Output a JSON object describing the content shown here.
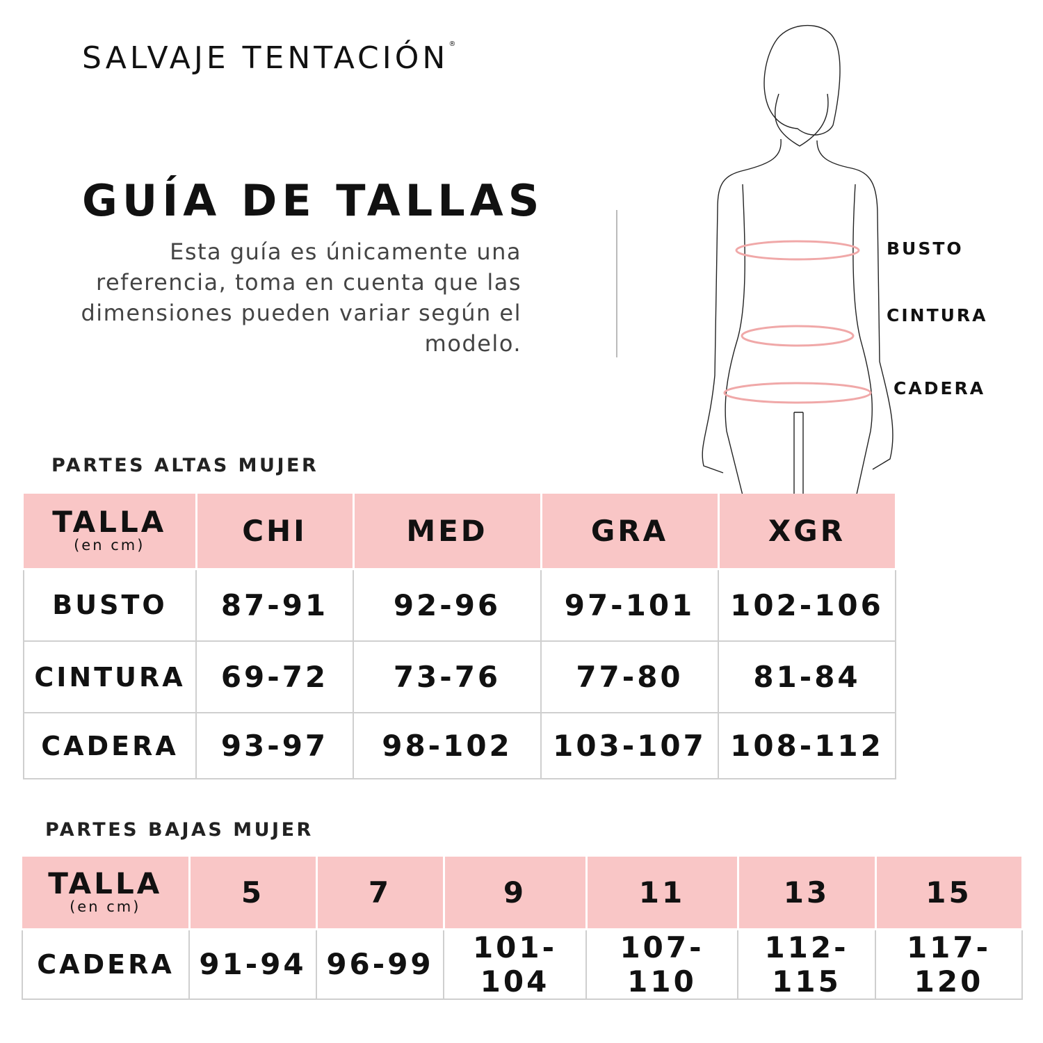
{
  "brand": {
    "name": "SALVAJE TENTACIÓN",
    "mark": "®"
  },
  "title": "GUÍA DE TALLAS",
  "description": "Esta guía es únicamente una referencia, toma en cuenta que las dimensiones pueden variar según el modelo.",
  "figure": {
    "labels": [
      "BUSTO",
      "CINTURA",
      "CADERA"
    ],
    "measure_color": "#f0a8a8"
  },
  "colors": {
    "header_bg": "#f9c6c6",
    "text": "#111111"
  },
  "top_table": {
    "section_title": "PARTES ALTAS MUJER",
    "header_label": "TALLA",
    "header_sublabel": "(en cm)",
    "columns": [
      "CHI",
      "MED",
      "GRA",
      "XGR"
    ],
    "rows": [
      {
        "label": "BUSTO",
        "values": [
          "87-91",
          "92-96",
          "97-101",
          "102-106"
        ]
      },
      {
        "label": "CINTURA",
        "values": [
          "69-72",
          "73-76",
          "77-80",
          "81-84"
        ]
      },
      {
        "label": "CADERA",
        "values": [
          "93-97",
          "98-102",
          "103-107",
          "108-112"
        ]
      }
    ]
  },
  "bottom_table": {
    "section_title": "PARTES BAJAS MUJER",
    "header_label": "TALLA",
    "header_sublabel": "(en cm)",
    "columns": [
      "5",
      "7",
      "9",
      "11",
      "13",
      "15"
    ],
    "rows": [
      {
        "label": "CADERA",
        "values": [
          "91-94",
          "96-99",
          "101-104",
          "107-110",
          "112-115",
          "117-120"
        ]
      }
    ]
  }
}
